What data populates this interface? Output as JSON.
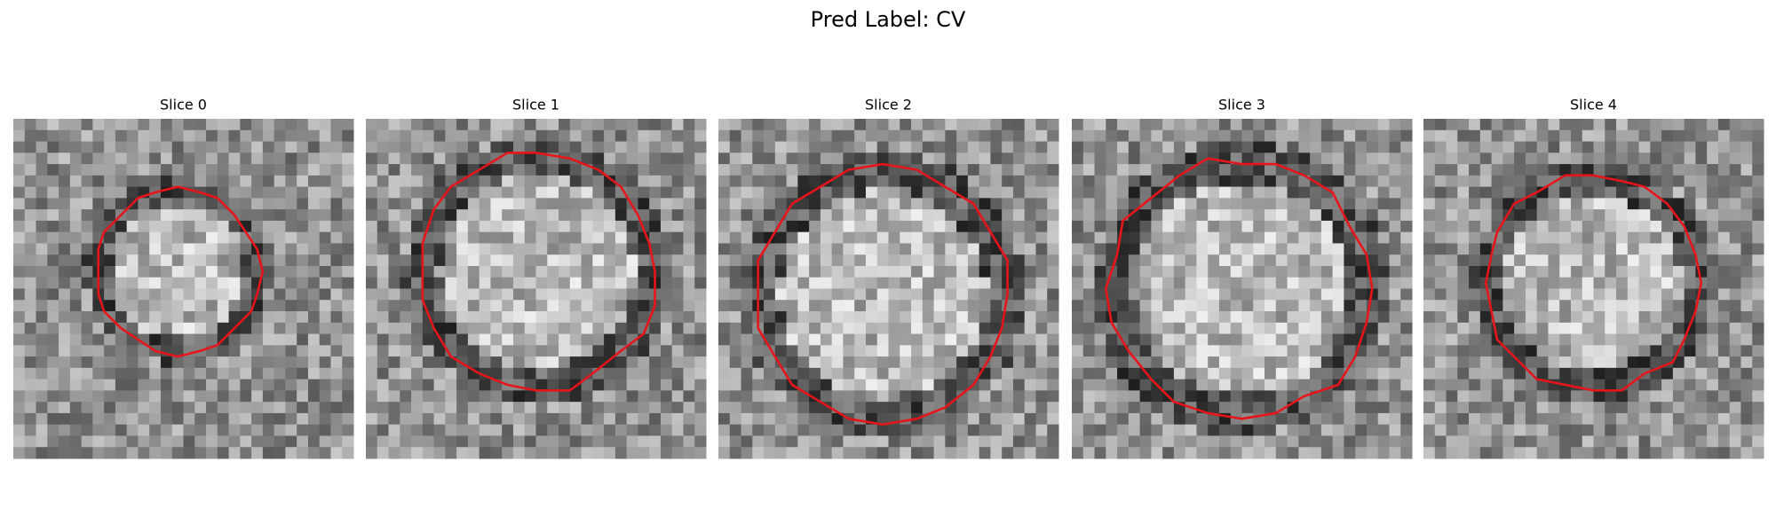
{
  "title": "Pred Label: CV",
  "panels": [
    {
      "label": "Slice 0"
    },
    {
      "label": "Slice 1"
    },
    {
      "label": "Slice 2"
    },
    {
      "label": "Slice 3"
    },
    {
      "label": "Slice 4"
    }
  ]
}
